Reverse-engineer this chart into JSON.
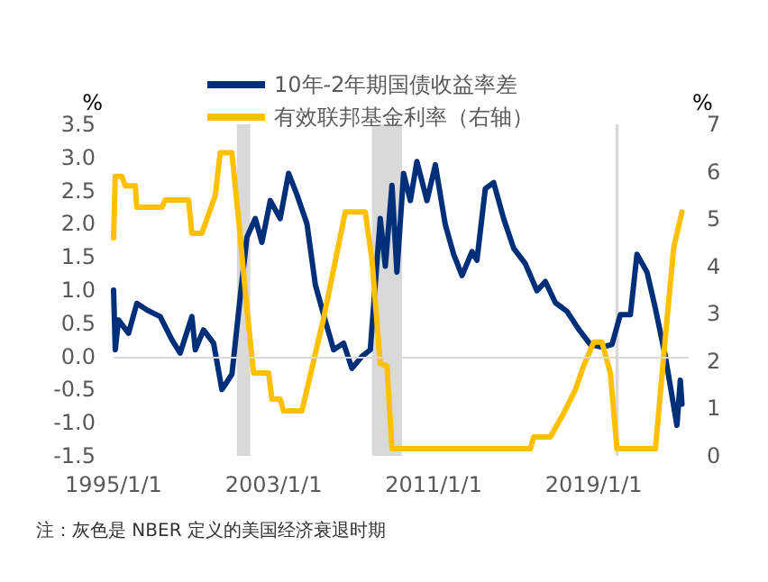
{
  "chart_data": {
    "type": "line",
    "ylabel": "%",
    "y2label": "%",
    "annotations": [
      "注：灰色是 NBER 定义的美国经济衰退时期"
    ],
    "xlim": [
      "1995-01",
      "2023-10"
    ],
    "xticks": [
      {
        "value": "1995-01-01",
        "label": "1995/1/1"
      },
      {
        "value": "2003-01-01",
        "label": "2003/1/1"
      },
      {
        "value": "2011-01-01",
        "label": "2011/1/1"
      },
      {
        "value": "2019-01-01",
        "label": "2019/1/1"
      }
    ],
    "ylim": [
      -1.5,
      3.5
    ],
    "yticks": [
      -1.5,
      {
        "value": -1,
        "label": "-1.0"
      },
      -0.5,
      {
        "value": 0,
        "label": "0.0"
      },
      0.5,
      {
        "value": 1,
        "label": "1.0"
      },
      1.5,
      {
        "value": 2,
        "label": "2.0"
      },
      2.5,
      {
        "value": 3,
        "label": "3.0"
      },
      3.5
    ],
    "y2lim": [
      0,
      7
    ],
    "y2ticks": [
      0,
      1,
      2,
      3,
      4,
      5,
      6,
      7
    ],
    "bands": [
      {
        "axis": "x",
        "from": "2001-03",
        "to": "2001-11",
        "color": "#d9d9d9"
      },
      {
        "axis": "x",
        "from": "2007-12",
        "to": "2009-06",
        "color": "#d9d9d9"
      },
      {
        "axis": "x",
        "from": "2020-02",
        "to": "2020-04",
        "color": "#d9d9d9"
      }
    ],
    "ref_lines": [
      {
        "axis": "y",
        "value": 0,
        "color": "#d9d9d9"
      }
    ],
    "legend": "top",
    "grid": false,
    "marker": "none",
    "line_style": "solid",
    "series": [
      {
        "name": "10年-2年期国债收益率差",
        "color": "#002f7a",
        "x": [
          "1995-01",
          "1995-02",
          "1995-04",
          "1995-10",
          "1996-03",
          "1996-09",
          "1997-05",
          "1997-12",
          "1998-05",
          "1998-12",
          "1999-02",
          "1999-07",
          "2000-01",
          "2000-06",
          "2000-12",
          "2001-05",
          "2001-09",
          "2002-02",
          "2002-06",
          "2002-11",
          "2003-05",
          "2003-10",
          "2004-03",
          "2004-09",
          "2005-02",
          "2005-08",
          "2006-01",
          "2006-07",
          "2006-12",
          "2007-06",
          "2007-11",
          "2008-05",
          "2008-08",
          "2008-12",
          "2009-03",
          "2009-07",
          "2009-11",
          "2010-03",
          "2010-09",
          "2011-02",
          "2011-08",
          "2012-01",
          "2012-06",
          "2012-12",
          "2013-03",
          "2013-08",
          "2014-01",
          "2014-07",
          "2015-01",
          "2015-08",
          "2016-03",
          "2016-08",
          "2017-02",
          "2017-09",
          "2018-04",
          "2018-11",
          "2019-06",
          "2019-12",
          "2020-05",
          "2020-11",
          "2021-03",
          "2021-09",
          "2022-02",
          "2022-08",
          "2022-11",
          "2023-03",
          "2023-05",
          "2023-06"
        ],
        "values": [
          1.0,
          0.1,
          0.55,
          0.35,
          0.8,
          0.7,
          0.6,
          0.25,
          0.05,
          0.6,
          0.1,
          0.4,
          0.2,
          -0.5,
          -0.27,
          0.9,
          1.8,
          2.08,
          1.72,
          2.35,
          2.08,
          2.76,
          2.44,
          2.0,
          1.08,
          0.54,
          0.1,
          0.2,
          -0.18,
          0.0,
          0.1,
          2.08,
          1.36,
          2.58,
          1.27,
          2.76,
          2.35,
          2.94,
          2.35,
          2.89,
          1.99,
          1.54,
          1.22,
          1.58,
          1.45,
          2.53,
          2.62,
          2.08,
          1.63,
          1.4,
          0.99,
          1.13,
          0.81,
          0.68,
          0.41,
          0.18,
          0.14,
          0.18,
          0.63,
          0.63,
          1.54,
          1.27,
          0.72,
          0.0,
          -0.45,
          -1.04,
          -0.36,
          -0.72
        ]
      },
      {
        "name": "有效联邦基金利率（右轴）",
        "color": "#ffc000",
        "axis": "y2",
        "x": [
          "1995-01",
          "1995-02",
          "1995-06",
          "1995-08",
          "1996-02",
          "1996-03",
          "1997-06",
          "1997-08",
          "1998-10",
          "1998-12",
          "1999-06",
          "2000-02",
          "2000-05",
          "2000-12",
          "2001-04",
          "2001-09",
          "2002-01",
          "2002-10",
          "2002-12",
          "2003-05",
          "2003-07",
          "2004-06",
          "2005-07",
          "2006-08",
          "2007-08",
          "2007-12",
          "2008-05",
          "2008-09",
          "2008-12",
          "2015-11",
          "2016-01",
          "2016-11",
          "2017-07",
          "2018-02",
          "2018-07",
          "2019-01",
          "2019-06",
          "2019-11",
          "2020-03",
          "2022-02",
          "2022-08",
          "2023-01",
          "2023-06"
        ],
        "values": [
          4.6,
          5.9,
          5.9,
          5.7,
          5.7,
          5.25,
          5.25,
          5.4,
          5.4,
          4.7,
          4.7,
          5.5,
          6.4,
          6.4,
          5.0,
          3.1,
          1.75,
          1.75,
          1.2,
          1.2,
          0.95,
          0.95,
          2.9,
          5.15,
          5.15,
          4.15,
          1.95,
          1.9,
          0.15,
          0.15,
          0.4,
          0.4,
          0.9,
          1.4,
          1.9,
          2.4,
          2.4,
          1.75,
          0.15,
          0.15,
          2.5,
          4.4,
          5.15
        ]
      }
    ]
  }
}
